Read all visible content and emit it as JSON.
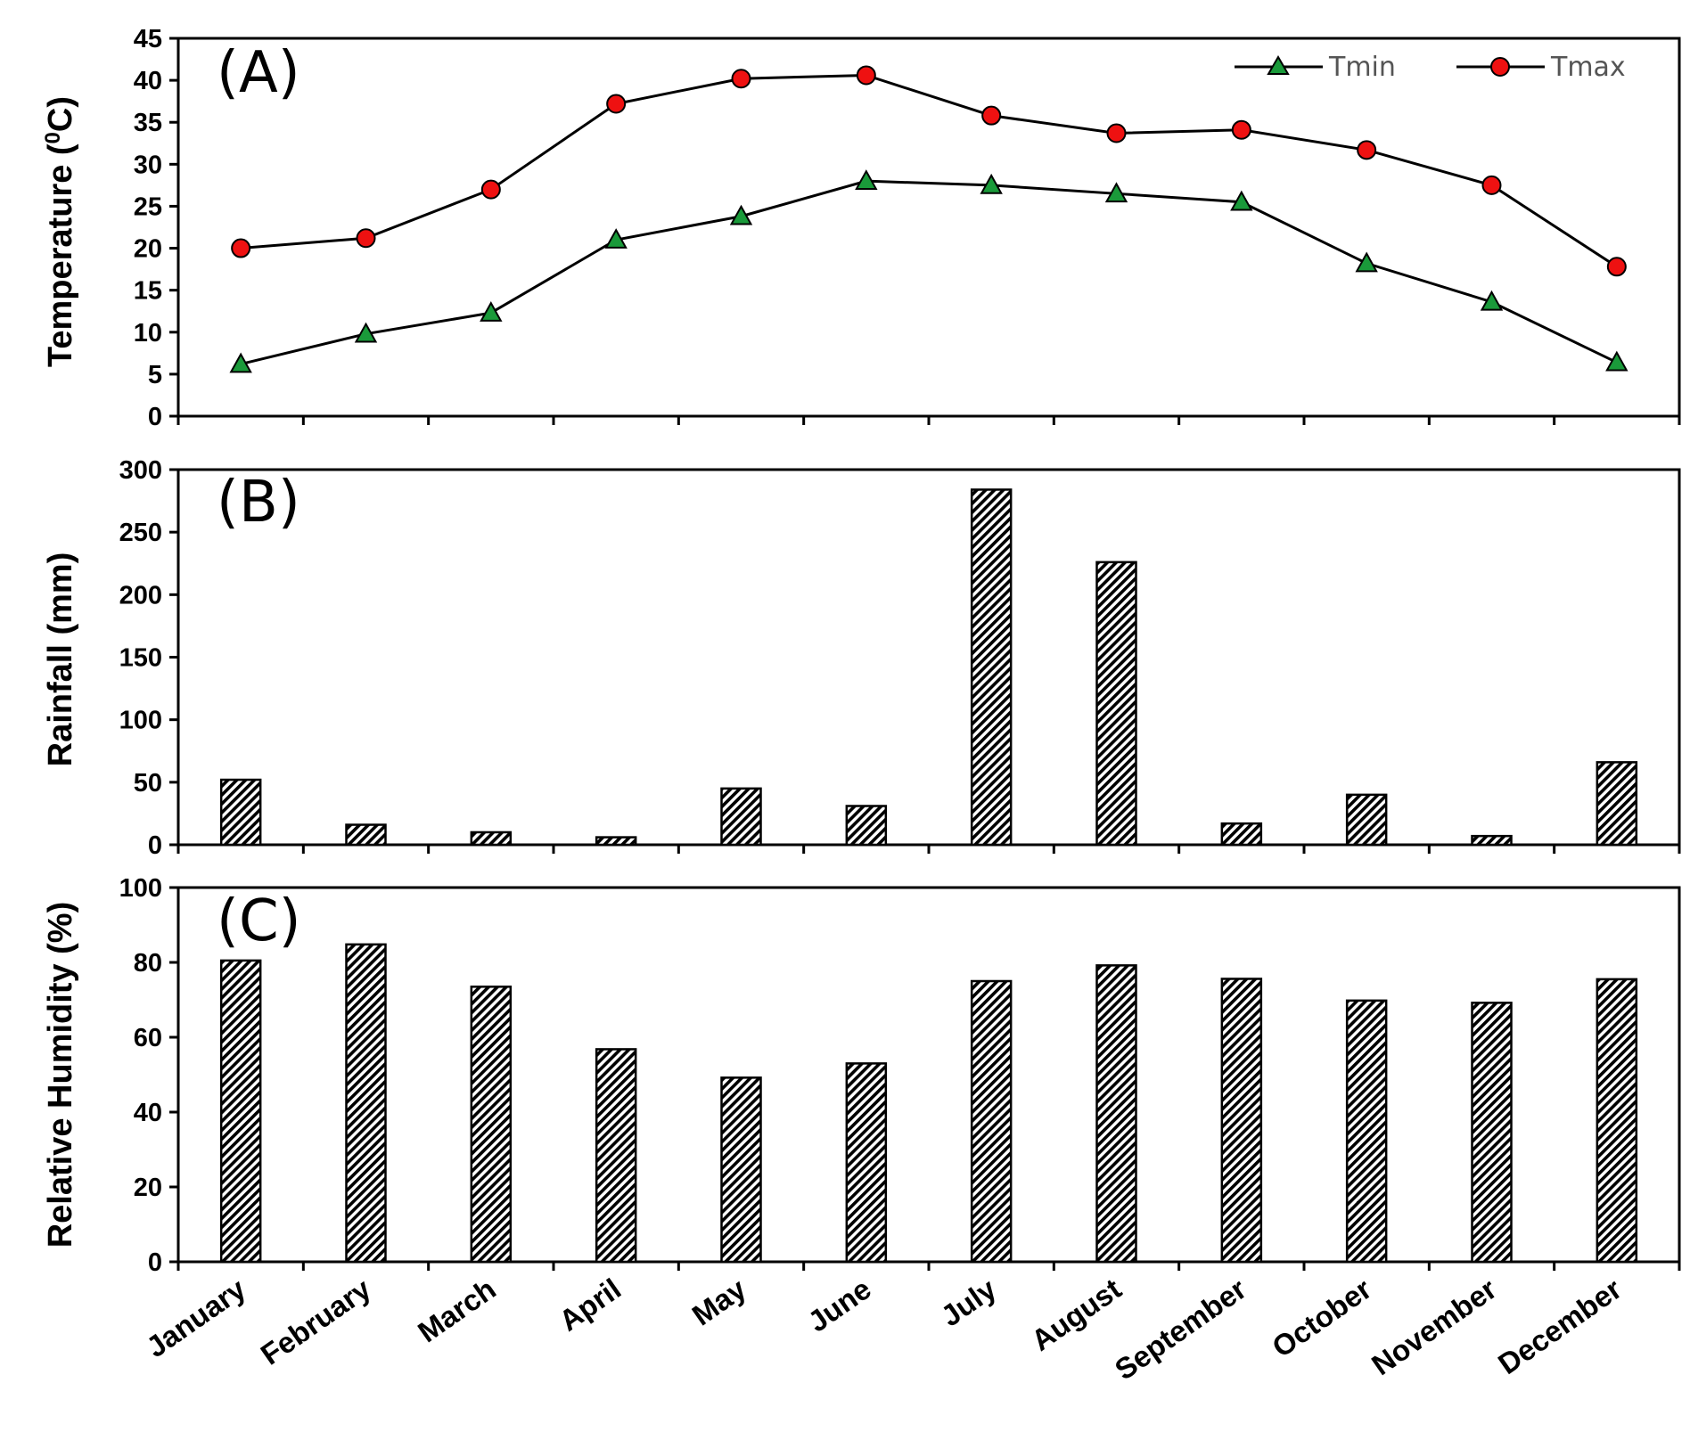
{
  "chart_data": [
    {
      "type": "line",
      "panel_label": "(A)",
      "categories": [
        "January",
        "February",
        "March",
        "April",
        "May",
        "June",
        "July",
        "August",
        "September",
        "October",
        "November",
        "December"
      ],
      "ylabel": "Temperature (",
      "ylabel_sup": "0",
      "ylabel_end": "C)",
      "ylim": [
        0,
        45
      ],
      "yticks": [
        0,
        5,
        10,
        15,
        20,
        25,
        30,
        35,
        40,
        45
      ],
      "legend_position": "top-right",
      "series": [
        {
          "name": "Tmin",
          "marker": "triangle",
          "color": "#1a9a3a",
          "values": [
            6.2,
            9.8,
            12.3,
            21.0,
            23.8,
            28.0,
            27.5,
            26.5,
            25.5,
            18.2,
            13.6,
            6.4
          ]
        },
        {
          "name": "Tmax",
          "marker": "circle",
          "color": "#ee1111",
          "values": [
            20.0,
            21.2,
            27.0,
            37.2,
            40.2,
            40.6,
            35.8,
            33.7,
            34.1,
            31.7,
            27.5,
            17.8
          ]
        }
      ]
    },
    {
      "type": "bar",
      "panel_label": "(B)",
      "categories": [
        "January",
        "February",
        "March",
        "April",
        "May",
        "June",
        "July",
        "August",
        "September",
        "October",
        "November",
        "December"
      ],
      "ylabel": "Rainfall (mm)",
      "ylim": [
        0,
        300
      ],
      "yticks": [
        0,
        50,
        100,
        150,
        200,
        250,
        300
      ],
      "values": [
        52,
        16,
        10,
        6,
        45,
        31,
        284,
        226,
        17,
        40,
        7,
        66
      ]
    },
    {
      "type": "bar",
      "panel_label": "(C)",
      "categories": [
        "January",
        "February",
        "March",
        "April",
        "May",
        "June",
        "July",
        "August",
        "September",
        "October",
        "November",
        "December"
      ],
      "ylabel": "Relative Humidity (%)",
      "ylim": [
        0,
        100
      ],
      "yticks": [
        0,
        20,
        40,
        60,
        80,
        100
      ],
      "values": [
        80.5,
        84.8,
        73.5,
        56.8,
        49.2,
        53.0,
        75.0,
        79.2,
        75.6,
        69.8,
        69.2,
        75.5
      ]
    }
  ],
  "colors": {
    "tmin_marker": "#1a9a3a",
    "tmax_marker": "#ee1111",
    "axis": "#000000"
  }
}
